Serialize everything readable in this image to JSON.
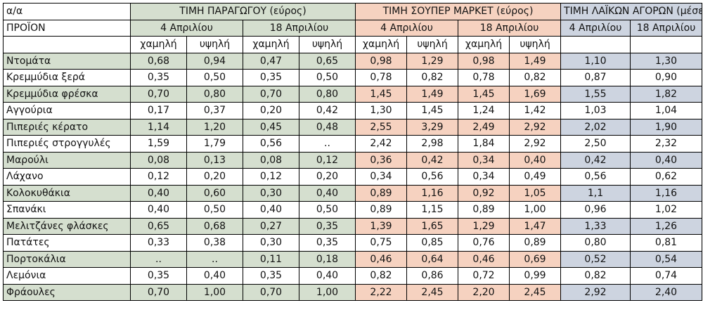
{
  "colors": {
    "producer": "#d5dfcf",
    "supermarket": "#f6d2c0",
    "markets": "#cdd4e0",
    "border": "#000000"
  },
  "header": {
    "corner_top": "α/α",
    "corner_bottom": "ΠΡΟΪΟΝ",
    "groups": {
      "producer": "ΤΙΜΗ ΠΑΡΑΓΩΓΟΥ (εύρος)",
      "supermarket": "ΤΙΜΗ ΣΟΥΠΕΡ ΜΑΡΚΕΤ (εύρος)",
      "markets": "ΤΙΜΗ ΛΑΪΚΩΝ ΑΓΟΡΩΝ (μέσες)"
    },
    "dates": {
      "d1": "4 Απριλίου",
      "d2": "18 Απριλίου"
    },
    "low": "χαμηλή",
    "high": "υψηλή"
  },
  "rows": [
    {
      "name": "Ντομάτα",
      "v": [
        "0,68",
        "0,94",
        "0,47",
        "0,65",
        "0,98",
        "1,29",
        "0,98",
        "1,49",
        "1,10",
        "1,30"
      ]
    },
    {
      "name": "Κρεμμύδια ξερά",
      "v": [
        "0,35",
        "0,50",
        "0,35",
        "0,50",
        "0,78",
        "0,82",
        "0,78",
        "0,82",
        "0,87",
        "0,90"
      ]
    },
    {
      "name": "Κρεμμύδια φρέσκα",
      "v": [
        "0,70",
        "0,80",
        "0,70",
        "0,80",
        "1,45",
        "1,49",
        "1,45",
        "1,69",
        "1,55",
        "1,82"
      ]
    },
    {
      "name": "Αγγούρια",
      "v": [
        "0,17",
        "0,37",
        "0,20",
        "0,42",
        "1,30",
        "1,45",
        "1,24",
        "1,42",
        "1,03",
        "1,04"
      ]
    },
    {
      "name": "Πιπεριές κέρατο",
      "v": [
        "1,14",
        "1,20",
        "0,45",
        "0,48",
        "2,55",
        "3,29",
        "2,49",
        "2,92",
        "2,02",
        "1,90"
      ]
    },
    {
      "name": "Πιπεριές στρογγυλές",
      "v": [
        "1,59",
        "1,79",
        "0,56",
        "..",
        "2,42",
        "2,98",
        "1,84",
        "2,92",
        "2,50",
        "2,32"
      ]
    },
    {
      "name": "Μαρούλι",
      "v": [
        "0,08",
        "0,13",
        "0,08",
        "0,12",
        "0,36",
        "0,42",
        "0,34",
        "0,40",
        "0,42",
        "0,40"
      ]
    },
    {
      "name": "Λάχανο",
      "v": [
        "0,12",
        "0,20",
        "0,12",
        "0,20",
        "0,34",
        "0,56",
        "0,34",
        "0,49",
        "0,56",
        "0,62"
      ]
    },
    {
      "name": "Κολοκυθάκια",
      "v": [
        "0,40",
        "0,60",
        "0,30",
        "0,40",
        "0,89",
        "1,16",
        "0,92",
        "1,05",
        "1,1",
        "1,16"
      ]
    },
    {
      "name": "Σπανάκι",
      "v": [
        "0,40",
        "0,50",
        "0,40",
        "0,50",
        "0,89",
        "1,15",
        "0,89",
        "1,00",
        "0,96",
        "1,02"
      ]
    },
    {
      "name": "Μελιτζάνες φλάσκες",
      "v": [
        "0,65",
        "0,68",
        "0,27",
        "0,35",
        "1,39",
        "1,65",
        "1,29",
        "1,47",
        "1,33",
        "1,26"
      ]
    },
    {
      "name": "Πατάτες",
      "v": [
        "0,33",
        "0,38",
        "0,30",
        "0,35",
        "0,75",
        "0,85",
        "0,76",
        "0,89",
        "0,80",
        "0,81"
      ]
    },
    {
      "name": "Πορτοκάλια",
      "v": [
        "..",
        "..",
        "0,11",
        "0,18",
        "0,46",
        "0,64",
        "0,46",
        "0,69",
        "0,52",
        "0,54"
      ]
    },
    {
      "name": "Λεμόνια",
      "v": [
        "0,35",
        "0,40",
        "0,35",
        "0,40",
        "0,82",
        "0,86",
        "0,72",
        "0,99",
        "0,82",
        "0,74"
      ]
    },
    {
      "name": "Φράουλες",
      "v": [
        "0,70",
        "1,00",
        "0,70",
        "1,00",
        "2,22",
        "2,45",
        "2,20",
        "2,45",
        "2,92",
        "2,40"
      ]
    }
  ]
}
